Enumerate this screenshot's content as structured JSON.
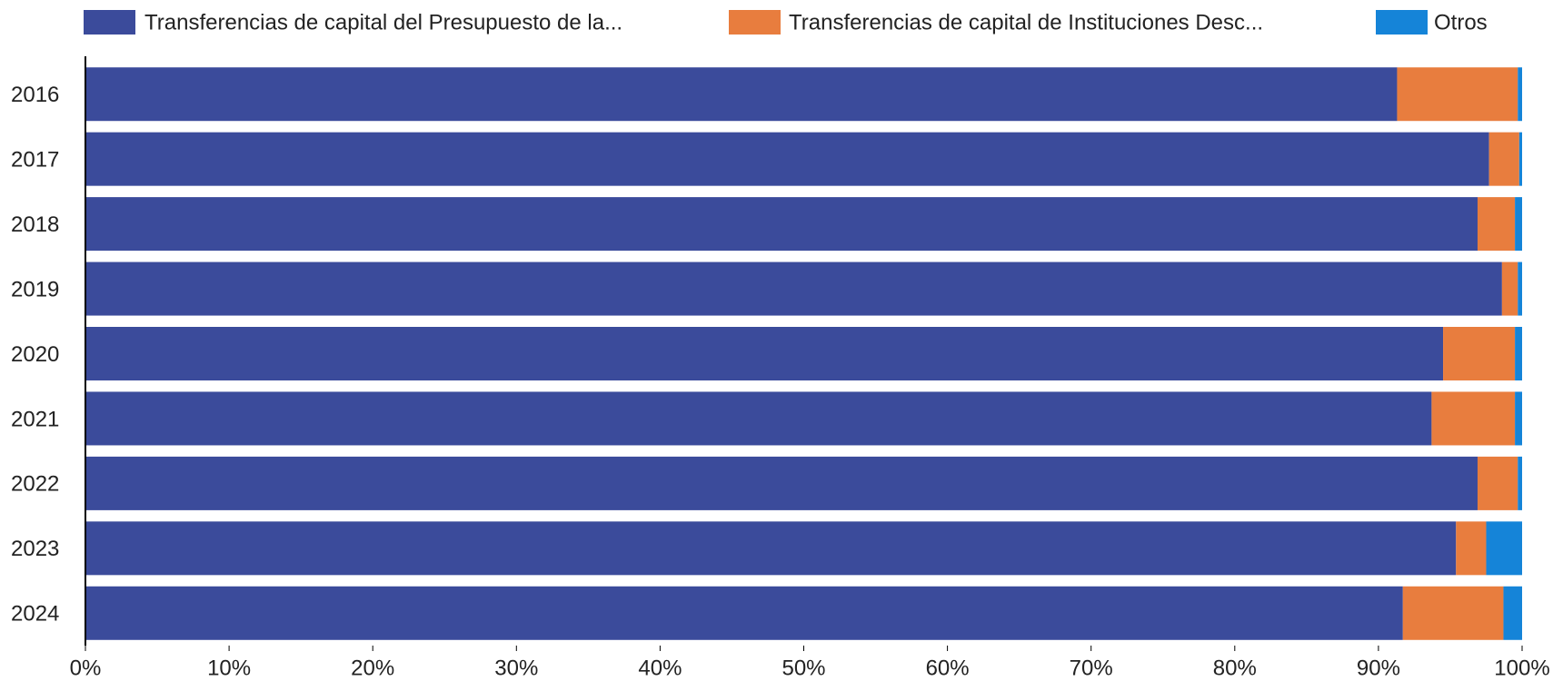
{
  "chart_data": {
    "type": "stacked_barh",
    "categories": [
      "2016",
      "2017",
      "2018",
      "2019",
      "2020",
      "2021",
      "2022",
      "2023",
      "2024"
    ],
    "series": [
      {
        "name": "Transferencias de capital del Presupuesto de la...",
        "color": "#3b4b9b",
        "values": [
          91.3,
          97.7,
          96.9,
          98.6,
          94.5,
          93.7,
          96.9,
          95.4,
          91.7
        ]
      },
      {
        "name": "Transferencias de capital de Instituciones Desc...",
        "color": "#e87d3e",
        "values": [
          8.4,
          2.1,
          2.6,
          1.1,
          5.0,
          5.8,
          2.8,
          2.1,
          7.0
        ]
      },
      {
        "name": "Otros",
        "color": "#1584d8",
        "values": [
          0.3,
          0.2,
          0.5,
          0.3,
          0.5,
          0.5,
          0.3,
          2.5,
          1.3
        ]
      }
    ],
    "xlim": [
      0,
      100
    ],
    "xticks": [
      {
        "value": 0,
        "label": "0%"
      },
      {
        "value": 10,
        "label": "10%"
      },
      {
        "value": 20,
        "label": "20%"
      },
      {
        "value": 30,
        "label": "30%"
      },
      {
        "value": 40,
        "label": "40%"
      },
      {
        "value": 50,
        "label": "50%"
      },
      {
        "value": 60,
        "label": "60%"
      },
      {
        "value": 70,
        "label": "70%"
      },
      {
        "value": 80,
        "label": "80%"
      },
      {
        "value": 90,
        "label": "90%"
      },
      {
        "value": 100,
        "label": "100%"
      }
    ],
    "legend": "top"
  }
}
